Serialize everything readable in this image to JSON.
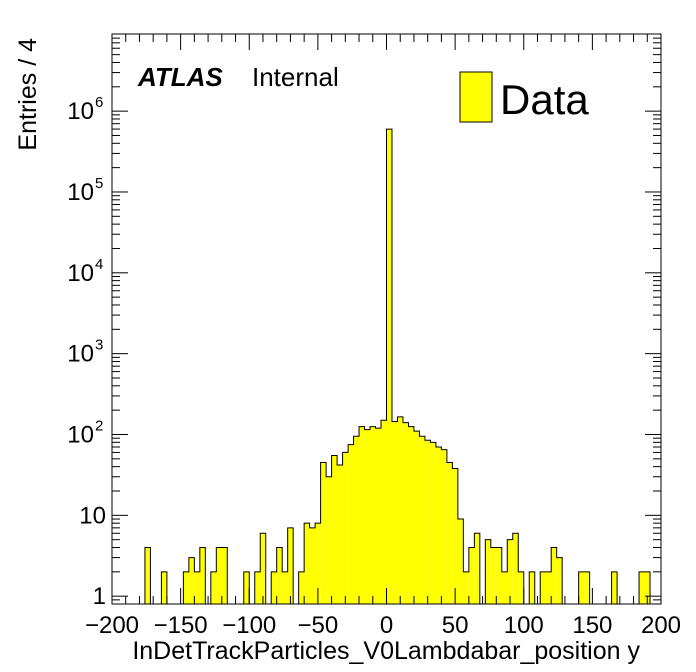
{
  "chart_data": {
    "type": "bar",
    "style": "histogram",
    "xlabel": "InDetTrackParticles_V0Lambdabar_position y",
    "ylabel": "Entries / 4",
    "xlim": [
      -200,
      200
    ],
    "ylim": [
      0.8,
      9000000
    ],
    "yscale": "log",
    "bin_width": 4,
    "x_ticks": [
      "−200",
      "−150",
      "−100",
      "−50",
      "0",
      "50",
      "100",
      "150",
      "200"
    ],
    "x_tick_values": [
      -200,
      -150,
      -100,
      -50,
      0,
      50,
      100,
      150,
      200
    ],
    "y_ticks": [
      {
        "value": 1,
        "base": "1",
        "exp": ""
      },
      {
        "value": 10,
        "base": "10",
        "exp": ""
      },
      {
        "value": 100,
        "base": "10",
        "exp": "2"
      },
      {
        "value": 1000,
        "base": "10",
        "exp": "3"
      },
      {
        "value": 10000,
        "base": "10",
        "exp": "4"
      },
      {
        "value": 100000,
        "base": "10",
        "exp": "5"
      },
      {
        "value": 1000000,
        "base": "10",
        "exp": "6"
      }
    ],
    "atlas_label": "ATLAS",
    "atlas_sublabel": "Internal",
    "legend": {
      "label": "Data",
      "position": "top-right",
      "color": "#ffff00"
    },
    "fill_color": "#ffff00",
    "line_color": "#000000",
    "series": [
      {
        "name": "Data",
        "bins": [
          {
            "x": -176,
            "y": 4
          },
          {
            "x": -164,
            "y": 2
          },
          {
            "x": -148,
            "y": 2
          },
          {
            "x": -144,
            "y": 3
          },
          {
            "x": -140,
            "y": 2
          },
          {
            "x": -136,
            "y": 4
          },
          {
            "x": -128,
            "y": 2
          },
          {
            "x": -124,
            "y": 4
          },
          {
            "x": -120,
            "y": 4
          },
          {
            "x": -104,
            "y": 2
          },
          {
            "x": -96,
            "y": 2
          },
          {
            "x": -92,
            "y": 6
          },
          {
            "x": -84,
            "y": 2
          },
          {
            "x": -80,
            "y": 4
          },
          {
            "x": -76,
            "y": 2
          },
          {
            "x": -72,
            "y": 7
          },
          {
            "x": -64,
            "y": 2
          },
          {
            "x": -60,
            "y": 8
          },
          {
            "x": -56,
            "y": 7
          },
          {
            "x": -52,
            "y": 8
          },
          {
            "x": -48,
            "y": 45
          },
          {
            "x": -44,
            "y": 30
          },
          {
            "x": -40,
            "y": 55
          },
          {
            "x": -36,
            "y": 42
          },
          {
            "x": -32,
            "y": 60
          },
          {
            "x": -28,
            "y": 75
          },
          {
            "x": -24,
            "y": 95
          },
          {
            "x": -20,
            "y": 125
          },
          {
            "x": -16,
            "y": 115
          },
          {
            "x": -12,
            "y": 125
          },
          {
            "x": -8,
            "y": 120
          },
          {
            "x": -4,
            "y": 150
          },
          {
            "x": 0,
            "y": 600000
          },
          {
            "x": 4,
            "y": 145
          },
          {
            "x": 8,
            "y": 165
          },
          {
            "x": 12,
            "y": 140
          },
          {
            "x": 16,
            "y": 125
          },
          {
            "x": 20,
            "y": 110
          },
          {
            "x": 24,
            "y": 95
          },
          {
            "x": 28,
            "y": 85
          },
          {
            "x": 32,
            "y": 80
          },
          {
            "x": 36,
            "y": 70
          },
          {
            "x": 40,
            "y": 65
          },
          {
            "x": 44,
            "y": 45
          },
          {
            "x": 48,
            "y": 38
          },
          {
            "x": 52,
            "y": 9
          },
          {
            "x": 56,
            "y": 2
          },
          {
            "x": 60,
            "y": 4
          },
          {
            "x": 64,
            "y": 6
          },
          {
            "x": 72,
            "y": 5
          },
          {
            "x": 76,
            "y": 4
          },
          {
            "x": 80,
            "y": 4
          },
          {
            "x": 84,
            "y": 2
          },
          {
            "x": 88,
            "y": 5
          },
          {
            "x": 92,
            "y": 6
          },
          {
            "x": 96,
            "y": 2
          },
          {
            "x": 104,
            "y": 2
          },
          {
            "x": 112,
            "y": 2
          },
          {
            "x": 116,
            "y": 2
          },
          {
            "x": 120,
            "y": 4
          },
          {
            "x": 124,
            "y": 3
          },
          {
            "x": 140,
            "y": 2
          },
          {
            "x": 144,
            "y": 2
          },
          {
            "x": 164,
            "y": 2
          },
          {
            "x": 184,
            "y": 2
          },
          {
            "x": 188,
            "y": 2
          }
        ]
      }
    ]
  }
}
